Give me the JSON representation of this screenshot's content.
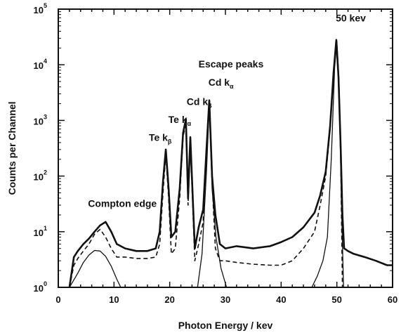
{
  "chart_data": {
    "type": "line",
    "title": "",
    "xlabel": "Photon Energy / kev",
    "ylabel": "Counts per Channel",
    "xlim": [
      0,
      60
    ],
    "ylim": [
      1,
      100000
    ],
    "yscale": "log",
    "x_ticks": [
      "0",
      "10",
      "20",
      "30",
      "40",
      "50",
      "60"
    ],
    "y_ticks": [
      {
        "base": "10",
        "exp": "0"
      },
      {
        "base": "10",
        "exp": "1"
      },
      {
        "base": "10",
        "exp": "2"
      },
      {
        "base": "10",
        "exp": "3"
      },
      {
        "base": "10",
        "exp": "4"
      },
      {
        "base": "10",
        "exp": "5"
      }
    ],
    "grid": false,
    "series": [
      {
        "style": "solid-thick",
        "color": "#111111",
        "x": [
          2,
          2.8,
          3.5,
          4.5,
          5.5,
          6.5,
          7.5,
          8.5,
          9.5,
          10.5,
          12,
          14,
          16,
          17.5,
          18.2,
          18.8,
          19.3,
          19.8,
          20.3,
          21,
          21.8,
          22.4,
          22.9,
          23.3,
          23.7,
          24.1,
          24.5,
          25.2,
          26,
          26.6,
          27.1,
          27.6,
          28.2,
          29,
          30,
          32,
          35,
          38,
          40,
          42,
          44,
          46,
          47,
          48,
          48.8,
          49.4,
          49.9,
          50.3,
          50.7,
          51,
          51.3,
          52,
          53,
          55,
          57,
          59,
          60
        ],
        "y": [
          1,
          3.5,
          4.5,
          6,
          7.5,
          10,
          13,
          15,
          10,
          6,
          5,
          4.5,
          4.5,
          5,
          10,
          80,
          300,
          60,
          8,
          10,
          60,
          600,
          1050,
          40,
          500,
          50,
          5,
          12,
          25,
          300,
          2300,
          100,
          20,
          6,
          5,
          5.5,
          5,
          5.5,
          6.5,
          8,
          12,
          22,
          45,
          120,
          800,
          7000,
          28000,
          6000,
          300,
          20,
          5,
          4.5,
          4,
          3.5,
          3,
          2.5,
          2.5
        ]
      },
      {
        "style": "dashed",
        "color": "#111111",
        "x": [
          2,
          2.8,
          3.5,
          4.5,
          5.5,
          6.5,
          7.5,
          8.5,
          9.5,
          10.5,
          12,
          14,
          16,
          17.5,
          18.2,
          18.8,
          19.3,
          19.8,
          20.3,
          21,
          21.8,
          22.4,
          22.9,
          23.3,
          23.7,
          24.1,
          24.5,
          25.2,
          26,
          26.6,
          27.1,
          27.6,
          28.2,
          29,
          30,
          32,
          35,
          38,
          40,
          42,
          44,
          46,
          47,
          48,
          48.8,
          49.4,
          49.9,
          50.3,
          50.7,
          51
        ],
        "y": [
          1,
          2.5,
          3.3,
          4.5,
          6,
          9,
          11,
          8,
          5,
          3.5,
          3.5,
          3.3,
          3.3,
          3.5,
          6,
          50,
          250,
          40,
          4,
          5,
          40,
          500,
          900,
          30,
          400,
          35,
          3,
          6,
          15,
          250,
          2000,
          80,
          5,
          3,
          3,
          2.8,
          2.6,
          2.5,
          2.5,
          3,
          5,
          10,
          30,
          100,
          700,
          6000,
          27000,
          5500,
          200,
          1
        ]
      },
      {
        "style": "solid-thin",
        "color": "#111111",
        "x": [
          2,
          3.5,
          4.5,
          5.5,
          6.5,
          7.5,
          8.5,
          9.5,
          10.5,
          11.2
        ],
        "y": [
          1,
          1.8,
          2.8,
          3.8,
          4.6,
          4.5,
          3.6,
          2.4,
          1.4,
          1
        ]
      },
      {
        "style": "solid-thin",
        "color": "#111111",
        "x": [
          25,
          25.8,
          26.6,
          27.1,
          27.6,
          28.3,
          29.2,
          30.2
        ],
        "y": [
          1,
          4,
          120,
          1800,
          60,
          8,
          2.2,
          1
        ]
      },
      {
        "style": "solid-thin",
        "color": "#111111",
        "x": [
          45.5,
          46.5,
          47.5,
          48.3,
          49,
          49.6,
          50,
          50.4,
          50.8,
          51.2
        ],
        "y": [
          1,
          1.6,
          3,
          8,
          200,
          9000,
          26000,
          5000,
          40,
          1
        ]
      }
    ],
    "annotations": [
      {
        "text": "50 kev",
        "x": 52.5,
        "y": 60000
      },
      {
        "text": "Escape peaks",
        "x": 31,
        "y": 9000
      },
      {
        "text": "Cd k",
        "sub": "α",
        "x": 29.2,
        "y": 4200
      },
      {
        "text": "Cd k",
        "sub": "β",
        "x": 25.3,
        "y": 1900
      },
      {
        "text": "Te k",
        "sub": "α",
        "x": 21.8,
        "y": 900
      },
      {
        "text": "Te k",
        "sub": "β",
        "x": 18.3,
        "y": 430
      },
      {
        "text": "Compton edge",
        "x": 11.5,
        "y": 28
      }
    ]
  }
}
